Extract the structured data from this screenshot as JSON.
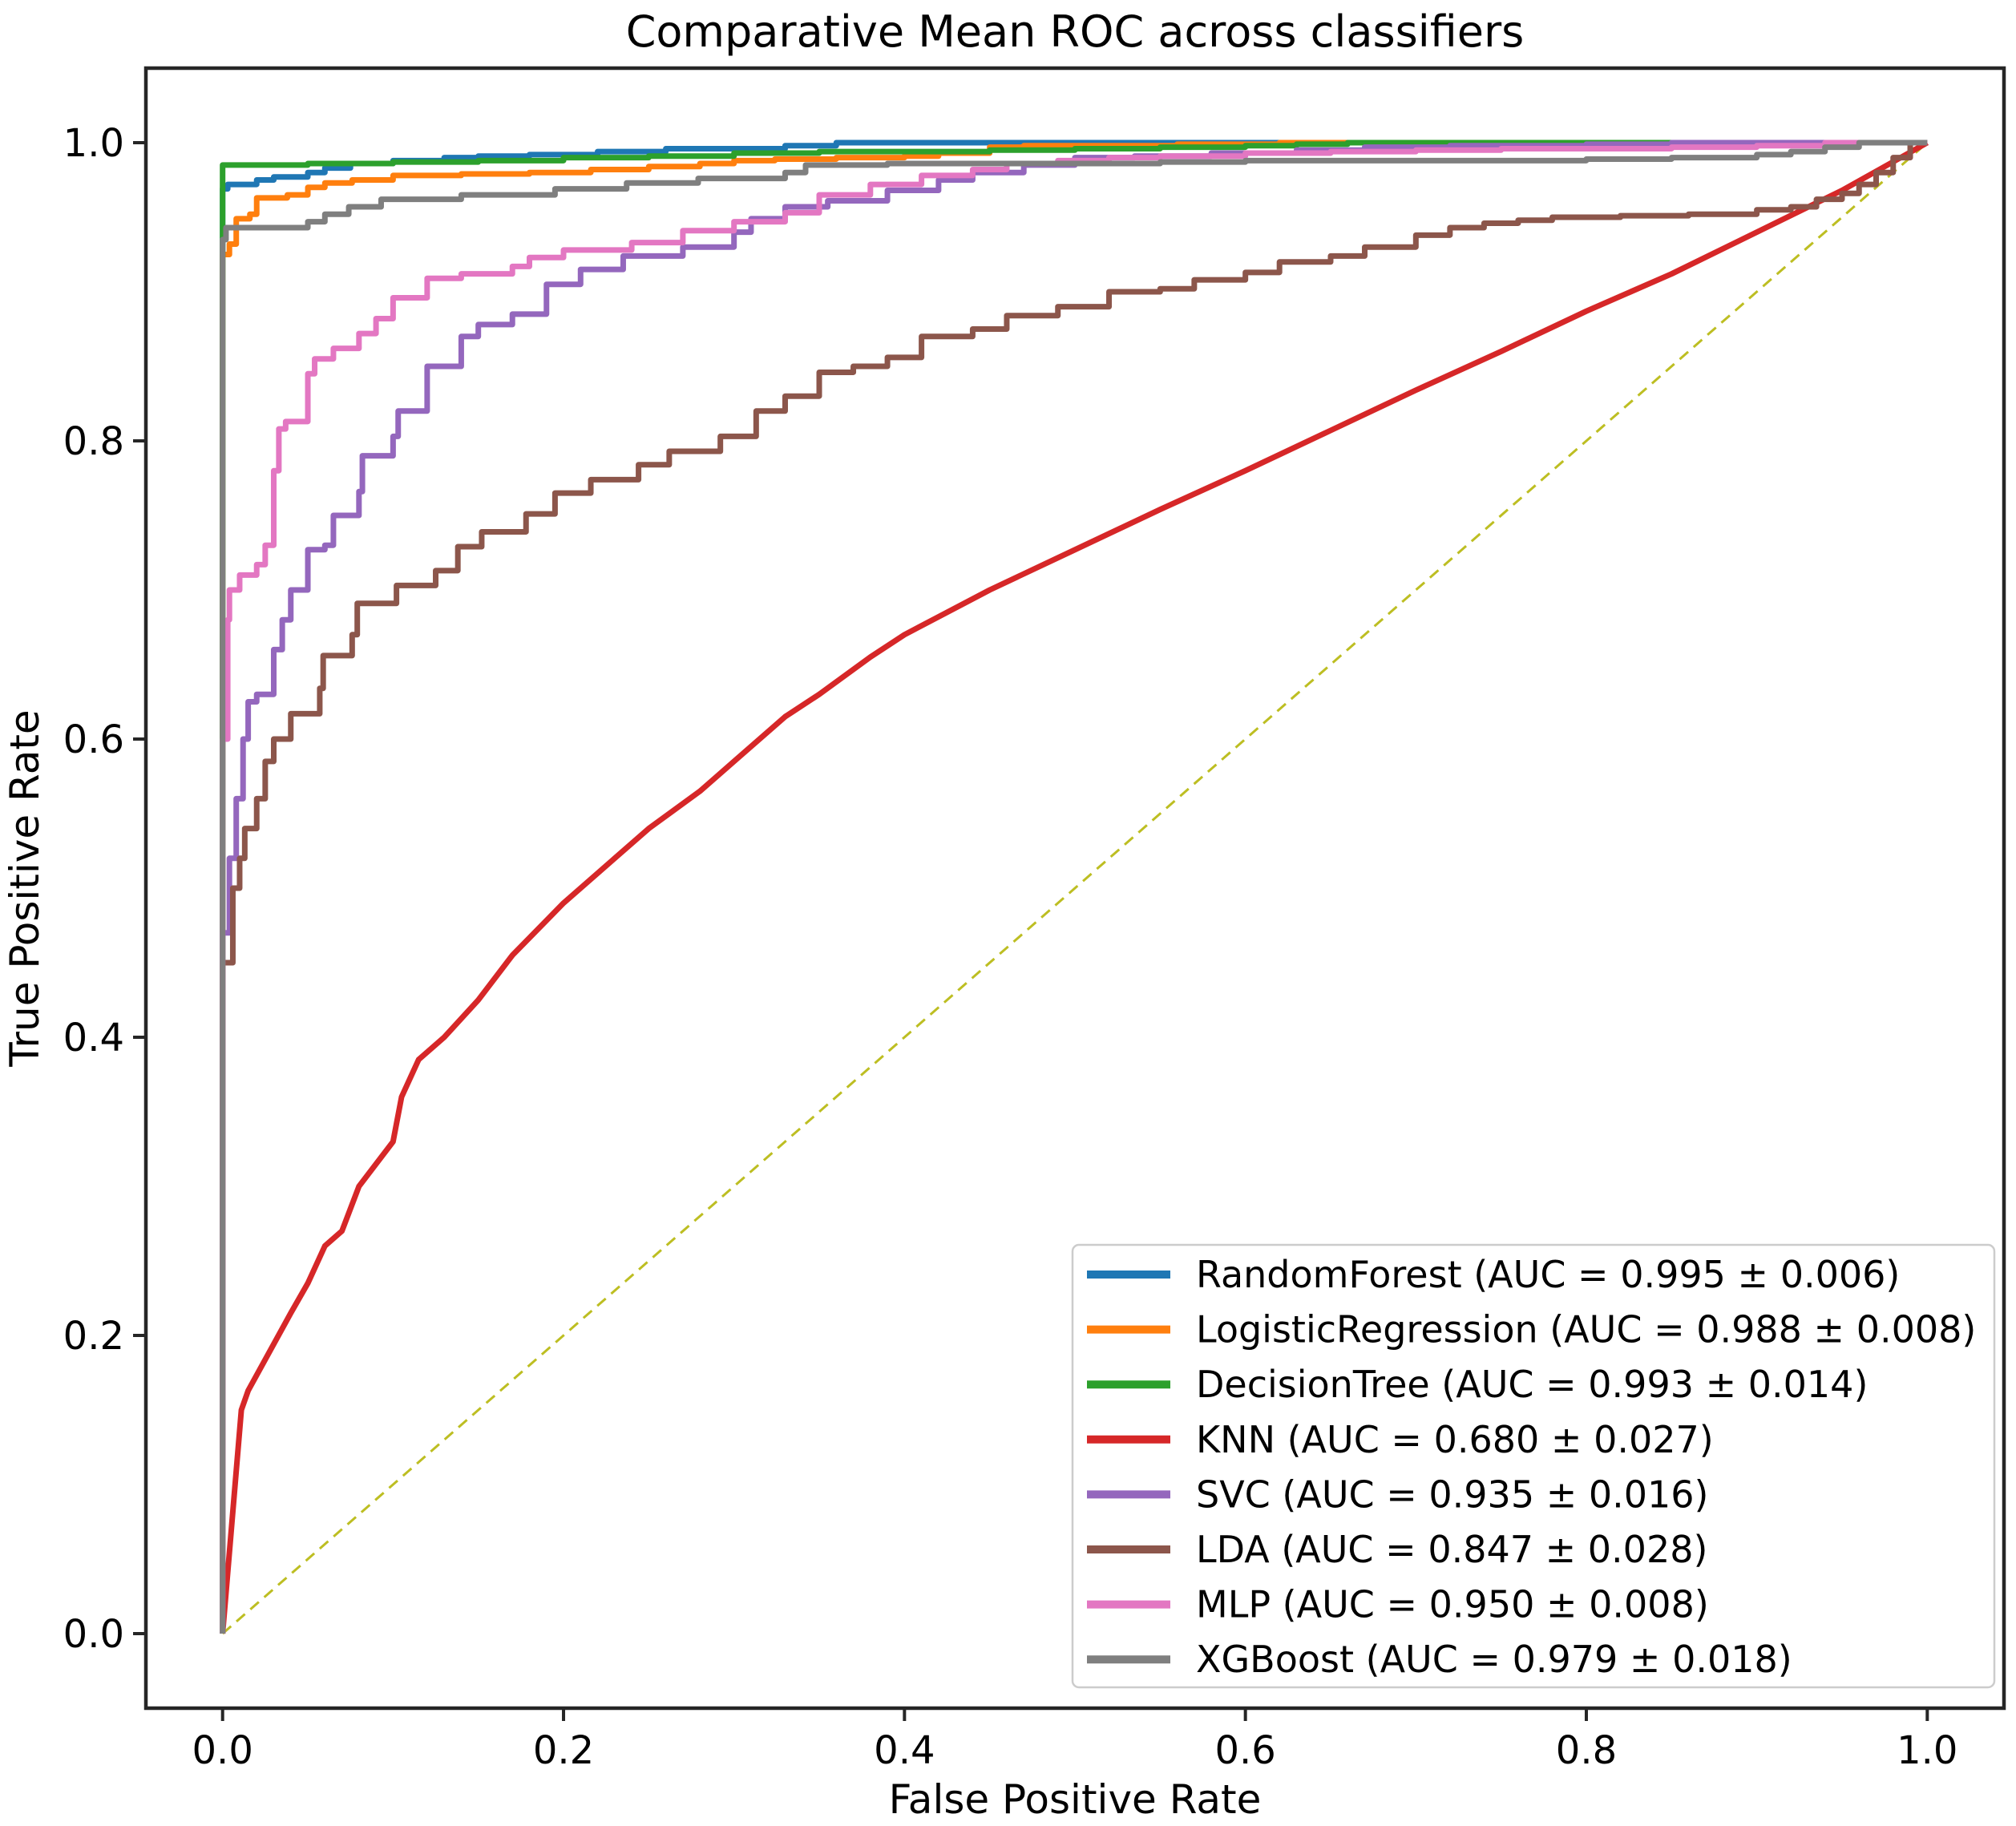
{
  "title": "Comparative Mean ROC across classifiers",
  "chart_data": {
    "type": "line",
    "title": "Comparative Mean ROC across classifiers",
    "xlabel": "False Positive Rate",
    "ylabel": "True Positive Rate",
    "xlim": [
      -0.045,
      1.045
    ],
    "ylim": [
      -0.05,
      1.05
    ],
    "grid": false,
    "legend_position": "lower right",
    "x_ticks": {
      "values": [
        0.0,
        0.2,
        0.4,
        0.6,
        0.8,
        1.0
      ],
      "labels": [
        "0.0",
        "0.2",
        "0.4",
        "0.6",
        "0.8",
        "1.0"
      ]
    },
    "y_ticks": {
      "values": [
        0.0,
        0.2,
        0.4,
        0.6,
        0.8,
        1.0
      ],
      "labels": [
        "0.0",
        "0.2",
        "0.4",
        "0.6",
        "0.8",
        "1.0"
      ]
    },
    "series": [
      {
        "name": "chance",
        "label": "",
        "in_legend": false,
        "color": "#bdbe22",
        "width": 3,
        "dash": "14 9",
        "interp": "linear",
        "x": [
          0,
          1
        ],
        "y": [
          0,
          1
        ]
      },
      {
        "name": "random-forest",
        "label": "RandomForest (AUC = 0.995 ± 0.006)",
        "in_legend": true,
        "color": "#1f77b4",
        "width": 7,
        "dash": "",
        "interp": "step",
        "x": [
          0,
          0.003,
          0.02,
          0.03,
          0.05,
          0.06,
          0.075,
          0.1,
          0.13,
          0.15,
          0.18,
          0.22,
          0.26,
          0.3,
          0.33,
          0.36,
          0.38,
          1.0
        ],
        "y": [
          0,
          0.969,
          0.972,
          0.975,
          0.977,
          0.98,
          0.983,
          0.986,
          0.988,
          0.99,
          0.991,
          0.992,
          0.994,
          0.996,
          0.996,
          0.998,
          1.0,
          1.0
        ]
      },
      {
        "name": "logistic-regression",
        "label": "LogisticRegression (AUC = 0.988 ± 0.008)",
        "in_legend": true,
        "color": "#ff7f0e",
        "width": 7,
        "dash": "",
        "interp": "step",
        "x": [
          0,
          0.004,
          0.008,
          0.016,
          0.02,
          0.038,
          0.05,
          0.06,
          0.076,
          0.1,
          0.14,
          0.18,
          0.216,
          0.25,
          0.28,
          0.3,
          0.324,
          0.36,
          0.4,
          0.42,
          0.45,
          0.47,
          0.52,
          0.56,
          0.62,
          0.7,
          1.0
        ],
        "y": [
          0,
          0.925,
          0.932,
          0.949,
          0.952,
          0.963,
          0.965,
          0.97,
          0.973,
          0.975,
          0.978,
          0.979,
          0.98,
          0.982,
          0.984,
          0.986,
          0.988,
          0.989,
          0.99,
          0.991,
          0.993,
          0.997,
          0.998,
          0.998,
          0.999,
          1.0,
          1.0
        ]
      },
      {
        "name": "decision-tree",
        "label": "DecisionTree (AUC = 0.993 ± 0.014)",
        "in_legend": true,
        "color": "#2ca02c",
        "width": 7,
        "dash": "",
        "interp": "step",
        "x": [
          0,
          0.002,
          0.05,
          0.1,
          0.15,
          0.2,
          0.25,
          0.3,
          0.35,
          0.4,
          0.45,
          0.5,
          0.55,
          0.6,
          0.63,
          0.66,
          0.7,
          1.0
        ],
        "y": [
          0,
          0.985,
          0.985,
          0.986,
          0.987,
          0.988,
          0.99,
          0.991,
          0.993,
          0.994,
          0.994,
          0.995,
          0.996,
          0.997,
          0.998,
          0.999,
          1.0,
          1.0
        ]
      },
      {
        "name": "knn",
        "label": "KNN (AUC = 0.680 ± 0.027)",
        "in_legend": true,
        "color": "#d62728",
        "width": 7,
        "dash": "",
        "interp": "linear",
        "x": [
          0,
          0.011,
          0.015,
          0.04,
          0.05,
          0.06,
          0.07,
          0.08,
          0.09,
          0.1,
          0.105,
          0.115,
          0.13,
          0.15,
          0.17,
          0.2,
          0.23,
          0.25,
          0.28,
          0.3,
          0.33,
          0.35,
          0.38,
          0.4,
          0.45,
          0.5,
          0.55,
          0.6,
          0.65,
          0.7,
          0.75,
          0.8,
          0.85,
          0.9,
          0.95,
          1.0
        ],
        "y": [
          0,
          0.15,
          0.163,
          0.215,
          0.235,
          0.26,
          0.27,
          0.3,
          0.315,
          0.33,
          0.36,
          0.385,
          0.4,
          0.425,
          0.455,
          0.49,
          0.52,
          0.54,
          0.565,
          0.585,
          0.615,
          0.63,
          0.655,
          0.67,
          0.7,
          0.727,
          0.754,
          0.78,
          0.807,
          0.834,
          0.86,
          0.887,
          0.912,
          0.94,
          0.968,
          1.0
        ]
      },
      {
        "name": "svc",
        "label": "SVC (AUC = 0.935 ± 0.016)",
        "in_legend": true,
        "color": "#9467bd",
        "width": 7,
        "dash": "",
        "interp": "step",
        "x": [
          0,
          0.004,
          0.008,
          0.012,
          0.015,
          0.02,
          0.03,
          0.035,
          0.04,
          0.05,
          0.06,
          0.065,
          0.08,
          0.082,
          0.1,
          0.103,
          0.12,
          0.14,
          0.15,
          0.17,
          0.19,
          0.21,
          0.235,
          0.27,
          0.3,
          0.31,
          0.33,
          0.355,
          0.39,
          0.42,
          0.44,
          0.47,
          0.5,
          0.535,
          0.58,
          0.63,
          0.67,
          0.72,
          0.8,
          0.85,
          0.88,
          1.0
        ],
        "y": [
          0,
          0.47,
          0.52,
          0.56,
          0.6,
          0.625,
          0.63,
          0.66,
          0.68,
          0.7,
          0.727,
          0.73,
          0.75,
          0.766,
          0.79,
          0.803,
          0.82,
          0.85,
          0.87,
          0.878,
          0.885,
          0.905,
          0.915,
          0.924,
          0.93,
          0.94,
          0.949,
          0.957,
          0.961,
          0.968,
          0.975,
          0.98,
          0.985,
          0.99,
          0.991,
          0.993,
          0.995,
          0.997,
          0.998,
          0.999,
          1.0,
          1.0
        ]
      },
      {
        "name": "lda",
        "label": "LDA (AUC = 0.847 ± 0.028)",
        "in_legend": true,
        "color": "#8c564b",
        "width": 7,
        "dash": "",
        "interp": "step",
        "x": [
          0,
          0.006,
          0.01,
          0.013,
          0.02,
          0.025,
          0.03,
          0.04,
          0.057,
          0.059,
          0.076,
          0.079,
          0.102,
          0.125,
          0.138,
          0.152,
          0.178,
          0.195,
          0.216,
          0.244,
          0.262,
          0.292,
          0.313,
          0.33,
          0.35,
          0.37,
          0.39,
          0.41,
          0.44,
          0.46,
          0.49,
          0.52,
          0.55,
          0.57,
          0.6,
          0.62,
          0.65,
          0.67,
          0.7,
          0.72,
          0.74,
          0.76,
          0.78,
          0.82,
          0.86,
          0.9,
          0.92,
          0.935,
          0.95,
          0.96,
          0.97,
          0.98,
          0.99,
          1.0
        ],
        "y": [
          0,
          0.45,
          0.5,
          0.52,
          0.54,
          0.56,
          0.585,
          0.6,
          0.617,
          0.634,
          0.656,
          0.67,
          0.691,
          0.703,
          0.713,
          0.729,
          0.739,
          0.751,
          0.765,
          0.774,
          0.784,
          0.793,
          0.803,
          0.82,
          0.83,
          0.846,
          0.85,
          0.856,
          0.87,
          0.875,
          0.884,
          0.89,
          0.9,
          0.902,
          0.908,
          0.913,
          0.92,
          0.924,
          0.93,
          0.938,
          0.943,
          0.946,
          0.948,
          0.95,
          0.951,
          0.952,
          0.955,
          0.957,
          0.962,
          0.966,
          0.972,
          0.98,
          0.99,
          1.0
        ]
      },
      {
        "name": "mlp",
        "label": "MLP (AUC = 0.950 ± 0.008)",
        "in_legend": true,
        "color": "#e377c2",
        "width": 7,
        "dash": "",
        "interp": "step",
        "x": [
          0,
          0.003,
          0.004,
          0.01,
          0.02,
          0.025,
          0.03,
          0.033,
          0.037,
          0.05,
          0.054,
          0.065,
          0.08,
          0.09,
          0.1,
          0.12,
          0.14,
          0.17,
          0.18,
          0.2,
          0.24,
          0.27,
          0.3,
          0.33,
          0.35,
          0.38,
          0.41,
          0.44,
          0.46,
          0.49,
          0.52,
          0.55,
          0.6,
          0.65,
          0.7,
          0.75,
          0.85,
          0.9,
          0.94,
          0.97,
          1.0
        ],
        "y": [
          0,
          0.6,
          0.68,
          0.7,
          0.71,
          0.717,
          0.73,
          0.78,
          0.808,
          0.813,
          0.845,
          0.855,
          0.862,
          0.872,
          0.882,
          0.896,
          0.909,
          0.912,
          0.917,
          0.923,
          0.928,
          0.933,
          0.941,
          0.947,
          0.953,
          0.965,
          0.972,
          0.978,
          0.982,
          0.986,
          0.988,
          0.99,
          0.991,
          0.993,
          0.994,
          0.995,
          0.996,
          0.997,
          0.998,
          1.0,
          1.0
        ]
      },
      {
        "name": "xgboost",
        "label": "XGBoost (AUC = 0.979 ± 0.018)",
        "in_legend": true,
        "color": "#7f7f7f",
        "width": 7,
        "dash": "",
        "interp": "step",
        "x": [
          0,
          0.002,
          0.004,
          0.05,
          0.06,
          0.074,
          0.093,
          0.14,
          0.195,
          0.237,
          0.279,
          0.33,
          0.342,
          0.39,
          0.48,
          0.55,
          0.6,
          0.7,
          0.8,
          0.85,
          0.9,
          0.92,
          0.94,
          0.96,
          0.98,
          1.0
        ],
        "y": [
          0,
          0.935,
          0.943,
          0.943,
          0.947,
          0.952,
          0.957,
          0.962,
          0.965,
          0.969,
          0.973,
          0.976,
          0.98,
          0.985,
          0.986,
          0.986,
          0.987,
          0.988,
          0.988,
          0.989,
          0.99,
          0.992,
          0.994,
          0.997,
          1.0,
          1.0
        ]
      }
    ]
  },
  "colors": {
    "background": "#ffffff",
    "spine": "#262626",
    "text": "#000000",
    "legend_border": "#cccccc",
    "legend_bg": "#ffffff"
  }
}
